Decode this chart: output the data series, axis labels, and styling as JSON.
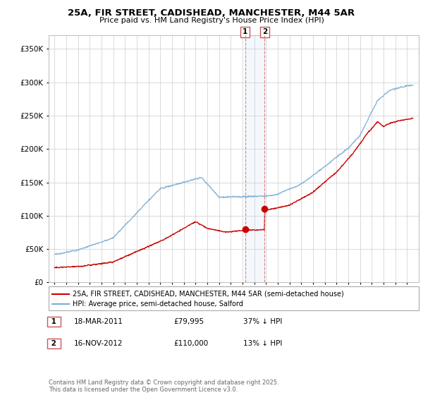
{
  "title": "25A, FIR STREET, CADISHEAD, MANCHESTER, M44 5AR",
  "subtitle": "Price paid vs. HM Land Registry's House Price Index (HPI)",
  "legend_label_red": "25A, FIR STREET, CADISHEAD, MANCHESTER, M44 5AR (semi-detached house)",
  "legend_label_blue": "HPI: Average price, semi-detached house, Salford",
  "annotation1_date": "18-MAR-2011",
  "annotation1_price": "£79,995",
  "annotation1_hpi": "37% ↓ HPI",
  "annotation2_date": "16-NOV-2012",
  "annotation2_price": "£110,000",
  "annotation2_hpi": "13% ↓ HPI",
  "footer": "Contains HM Land Registry data © Crown copyright and database right 2025.\nThis data is licensed under the Open Government Licence v3.0.",
  "ylim": [
    0,
    370000
  ],
  "yticks": [
    0,
    50000,
    100000,
    150000,
    200000,
    250000,
    300000,
    350000
  ],
  "red_color": "#cc0000",
  "blue_color": "#7aadd4",
  "background_color": "#ffffff",
  "grid_color": "#cccccc",
  "sale1_year": 2011.21,
  "sale1_price": 79995,
  "sale2_year": 2012.88,
  "sale2_price": 110000
}
